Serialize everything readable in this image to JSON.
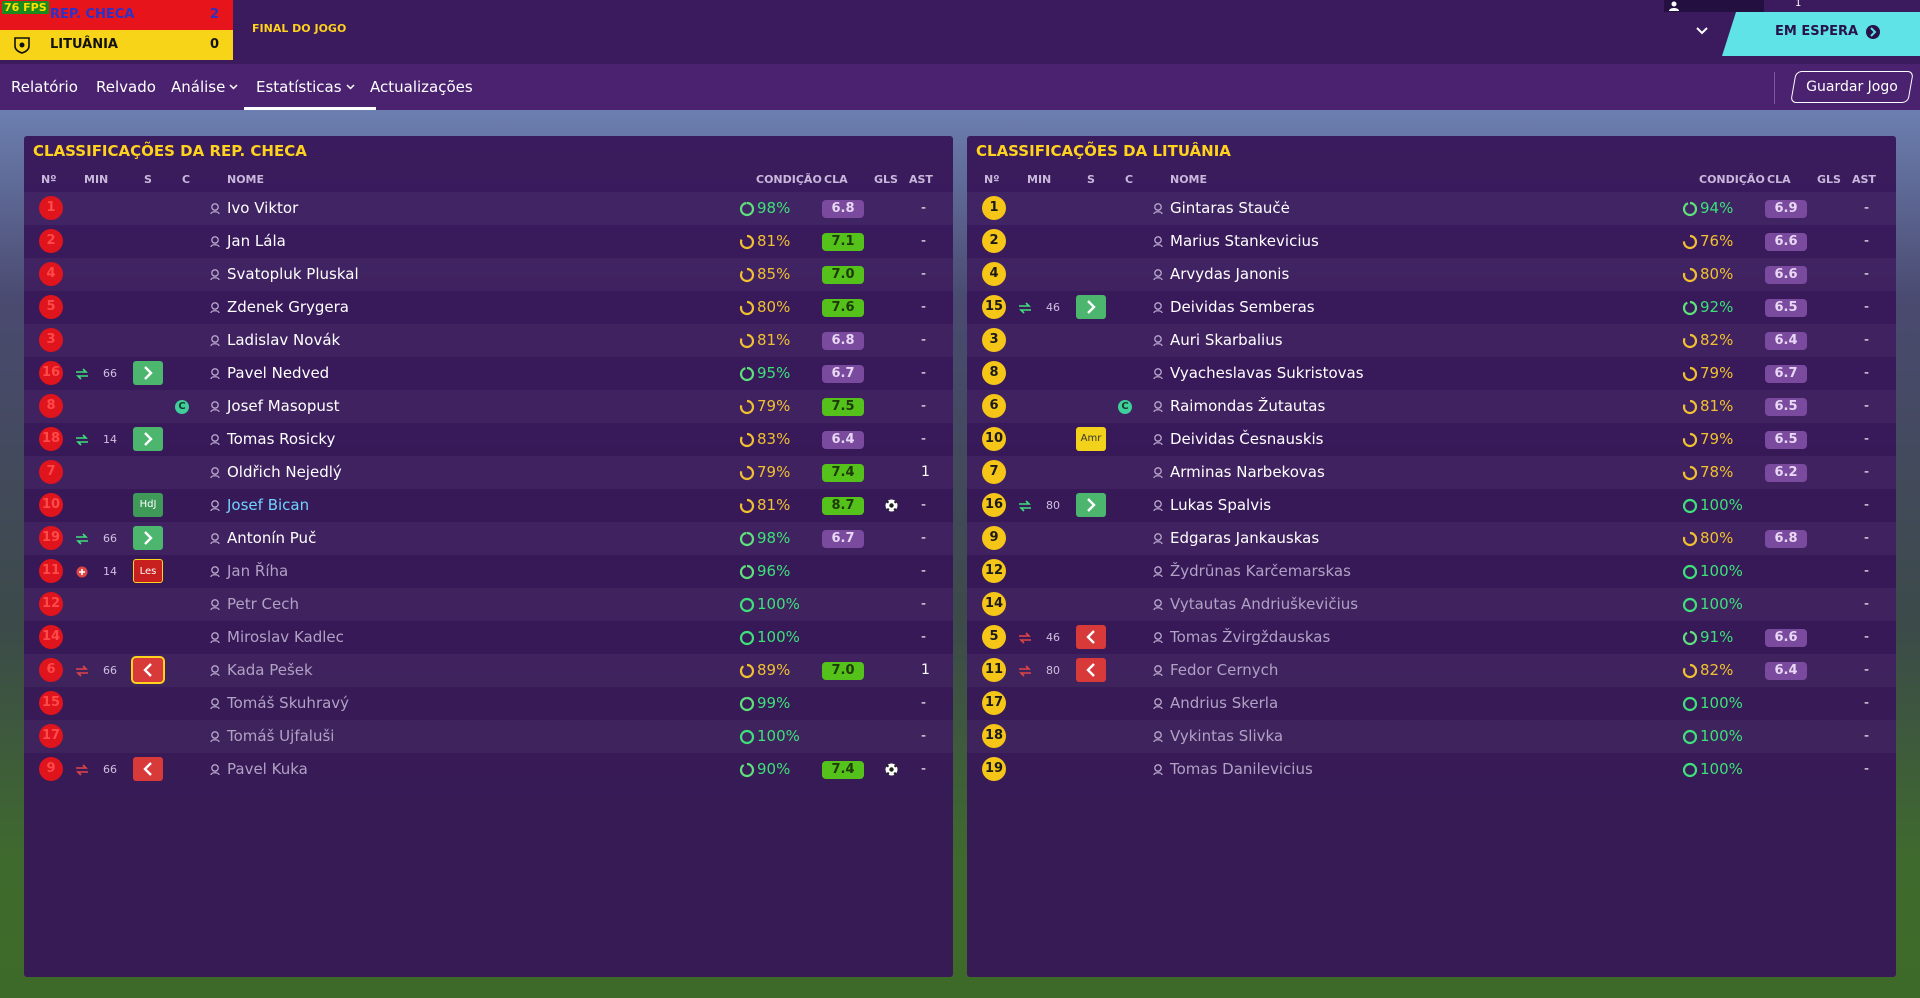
{
  "fps": "76 FPS",
  "scoreboard": {
    "home": {
      "name": "REP. CHECA",
      "score": "2"
    },
    "away": {
      "name": "LITUÂNIA",
      "score": "0"
    },
    "status": "FINAL DO JOGO"
  },
  "top_right": {
    "count": "1",
    "button": "EM ESPERA"
  },
  "nav": {
    "tabs": [
      "Relatório",
      "Relvado",
      "Análise",
      "Estatísticas",
      "Actualizações"
    ],
    "dropdown_tabs": [
      2,
      3
    ],
    "active": 3,
    "save": "Guardar Jogo"
  },
  "panels": [
    {
      "title": "CLASSIFICAÇÕES DA REP. CHECA",
      "number_color": "#e0141c",
      "number_text_color": "#ff4a4a",
      "columns": [
        "Nº",
        "MIN",
        "S",
        "C",
        "NOME",
        "CONDIÇÃO",
        "CLA",
        "GLS",
        "AST"
      ],
      "rows": [
        {
          "no": "1",
          "name": "Ivo Viktor",
          "cond": "98%",
          "cla": "6.8",
          "ast": "-"
        },
        {
          "no": "2",
          "name": "Jan Lála",
          "cond": "81%",
          "cla": "7.1",
          "ast": "-"
        },
        {
          "no": "4",
          "name": "Svatopluk Pluskal",
          "cond": "85%",
          "cla": "7.0",
          "ast": "-"
        },
        {
          "no": "5",
          "name": "Zdenek Grygera",
          "cond": "80%",
          "cla": "7.6",
          "ast": "-"
        },
        {
          "no": "3",
          "name": "Ladislav Novák",
          "cond": "81%",
          "cla": "6.8",
          "ast": "-"
        },
        {
          "no": "16",
          "sub": "in",
          "min": "66",
          "name": "Pavel Nedved",
          "cond": "95%",
          "cla": "6.7",
          "ast": "-"
        },
        {
          "no": "8",
          "captain": "C",
          "name": "Josef Masopust",
          "cond": "79%",
          "cla": "7.5",
          "ast": "-"
        },
        {
          "no": "18",
          "sub": "in",
          "min": "14",
          "name": "Tomas Rosicky",
          "cond": "83%",
          "cla": "6.4",
          "ast": "-"
        },
        {
          "no": "7",
          "name": "Oldřich Nejedlý",
          "cond": "79%",
          "cla": "7.4",
          "ast": "1"
        },
        {
          "no": "10",
          "badge": {
            "text": "HdJ",
            "color": "#3f9a5a"
          },
          "name": "Josef Bican",
          "name_color": "#6fd3ff",
          "cond": "81%",
          "cla": "8.7",
          "goals": 1,
          "ast": "-"
        },
        {
          "no": "19",
          "sub": "in",
          "min": "66",
          "name": "Antonín Puč",
          "cond": "98%",
          "cla": "6.7",
          "ast": "-"
        },
        {
          "no": "11",
          "sub": "injury",
          "min": "14",
          "badge": {
            "text": "Les",
            "color": "#c8201e"
          },
          "name": "Jan Říha",
          "cond": "96%",
          "ast": "-"
        },
        {
          "no": "12",
          "name": "Petr Cech",
          "cond": "100%",
          "ast": "-"
        },
        {
          "no": "14",
          "name": "Miroslav Kadlec",
          "cond": "100%",
          "ast": "-"
        },
        {
          "no": "6",
          "sub": "out",
          "min": "66",
          "name": "Kada Pešek",
          "cond": "89%",
          "cla": "7.0",
          "ast": "1"
        },
        {
          "no": "15",
          "name": "Tomáš Skuhravý",
          "cond": "99%",
          "ast": "-"
        },
        {
          "no": "17",
          "name": "Tomáš Ujfaluši",
          "cond": "100%",
          "ast": "-"
        },
        {
          "no": "9",
          "sub": "out",
          "min": "66",
          "name": "Pavel Kuka",
          "cond": "90%",
          "cla": "7.4",
          "goals": 1,
          "ast": "-"
        }
      ]
    },
    {
      "title": "CLASSIFICAÇÕES DA LITUÂNIA",
      "number_color": "#f5c518",
      "number_text_color": "#1a1a1a",
      "columns": [
        "Nº",
        "MIN",
        "S",
        "C",
        "NOME",
        "CONDIÇÃO",
        "CLA",
        "GLS",
        "AST"
      ],
      "rows": [
        {
          "no": "1",
          "name": "Gintaras Staučė",
          "cond": "94%",
          "cla": "6.9",
          "ast": "-"
        },
        {
          "no": "2",
          "name": "Marius Stankevicius",
          "cond": "76%",
          "cla": "6.6",
          "ast": "-"
        },
        {
          "no": "4",
          "name": "Arvydas Janonis",
          "cond": "80%",
          "cla": "6.6",
          "ast": "-"
        },
        {
          "no": "15",
          "sub": "in",
          "min": "46",
          "name": "Deividas Semberas",
          "cond": "92%",
          "cla": "6.5",
          "ast": "-"
        },
        {
          "no": "3",
          "name": "Auri Skarbalius",
          "cond": "82%",
          "cla": "6.4",
          "ast": "-"
        },
        {
          "no": "8",
          "name": "Vyacheslavas Sukristovas",
          "cond": "79%",
          "cla": "6.7",
          "ast": "-"
        },
        {
          "no": "6",
          "captain": "C",
          "name": "Raimondas Žutautas",
          "cond": "81%",
          "cla": "6.5",
          "ast": "-"
        },
        {
          "no": "10",
          "badge": {
            "text": "Amr",
            "color": "#f2d21b"
          },
          "name": "Deividas Česnauskis",
          "cond": "79%",
          "cla": "6.5",
          "ast": "-"
        },
        {
          "no": "7",
          "name": "Arminas Narbekovas",
          "cond": "78%",
          "cla": "6.2",
          "ast": "-"
        },
        {
          "no": "16",
          "sub": "in",
          "min": "80",
          "name": "Lukas Spalvis",
          "cond": "100%",
          "ast": "-"
        },
        {
          "no": "9",
          "name": "Edgaras Jankauskas",
          "cond": "80%",
          "cla": "6.8",
          "ast": "-"
        },
        {
          "no": "12",
          "name": "Žydrūnas Karčemarskas",
          "cond": "100%",
          "ast": "-"
        },
        {
          "no": "14",
          "name": "Vytautas Andriuškevičius",
          "cond": "100%",
          "ast": "-"
        },
        {
          "no": "5",
          "sub": "out",
          "min": "46",
          "name": "Tomas Žvirgždauskas",
          "cond": "91%",
          "cla": "6.6",
          "ast": "-"
        },
        {
          "no": "11",
          "sub": "out",
          "min": "80",
          "name": "Fedor Cernych",
          "cond": "82%",
          "cla": "6.4",
          "ast": "-"
        },
        {
          "no": "17",
          "name": "Andrius Skerla",
          "cond": "100%",
          "ast": "-"
        },
        {
          "no": "18",
          "name": "Vykintas Slivka",
          "cond": "100%",
          "ast": "-"
        },
        {
          "no": "19",
          "name": "Tomas Danilevicius",
          "cond": "100%",
          "ast": "-"
        }
      ]
    }
  ]
}
